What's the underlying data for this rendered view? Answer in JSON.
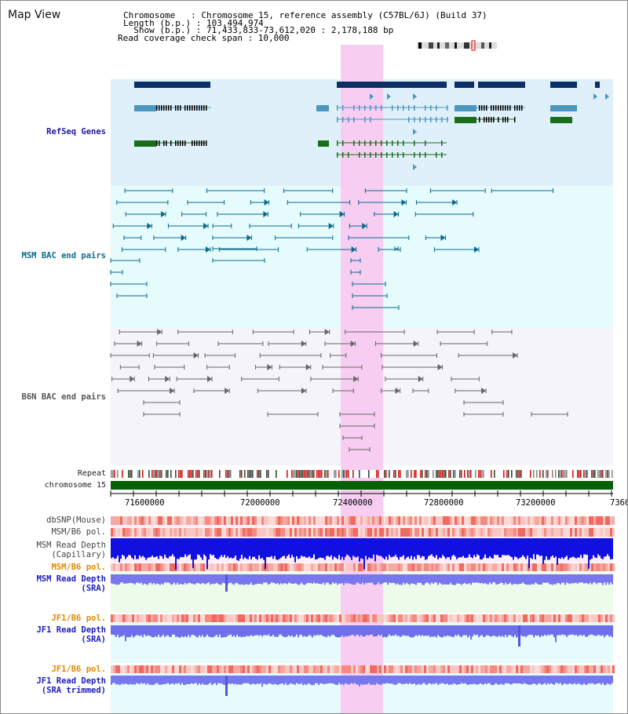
{
  "title": "Map View",
  "header": {
    "chromosome_line": "Chromosome   : Chromosome 15, reference assembly (C57BL/6J) (Build 37)",
    "length_line": "Length (b.p.) : 103,494,974",
    "show_line": "  Show (b.p.) : 71,433,833-73,612,020 : 2,178,188 bp",
    "coverage_line": "Read coverage check span : 10,000"
  },
  "tracks": {
    "refseq": "RefSeq Genes",
    "msm_bac": "MSM BAC end pairs",
    "b6n_bac": "B6N BAC end pairs",
    "repeat": "Repeat",
    "chromosome": "chromosome 15",
    "dbsnp": "dbSNP(Mouse)",
    "msm_b6_pol": "MSM/B6 pol.",
    "msm_read_depth_cap_1": "MSM Read Depth",
    "msm_read_depth_cap_2": "(Capillary)",
    "msm_b6_pol_2": "MSM/B6 pol.",
    "msm_read_depth_sra_1": "MSM Read Depth",
    "msm_read_depth_sra_2": "(SRA)",
    "jf1_b6_pol": "JF1/B6 pol.",
    "jf1_read_depth_sra_1": "JF1 Read Depth",
    "jf1_read_depth_sra_2": "(SRA)",
    "jf1_b6_pol_2": "JF1/B6 pol.",
    "jf1_read_depth_trim_1": "JF1 Read Depth",
    "jf1_read_depth_trim_2": "(SRA trimmed)"
  },
  "axis": {
    "ticks": [
      "71600000",
      "72000000",
      "72400000",
      "72800000",
      "73200000",
      "7360"
    ]
  },
  "colors": {
    "refseq_label": "#1b1b9e",
    "msm_label": "#0b6a8c",
    "b6n_label": "#555555",
    "pol_label": "#e08a00",
    "depth_label": "#1b1bbf",
    "highlight": "#f5c6f0"
  }
}
